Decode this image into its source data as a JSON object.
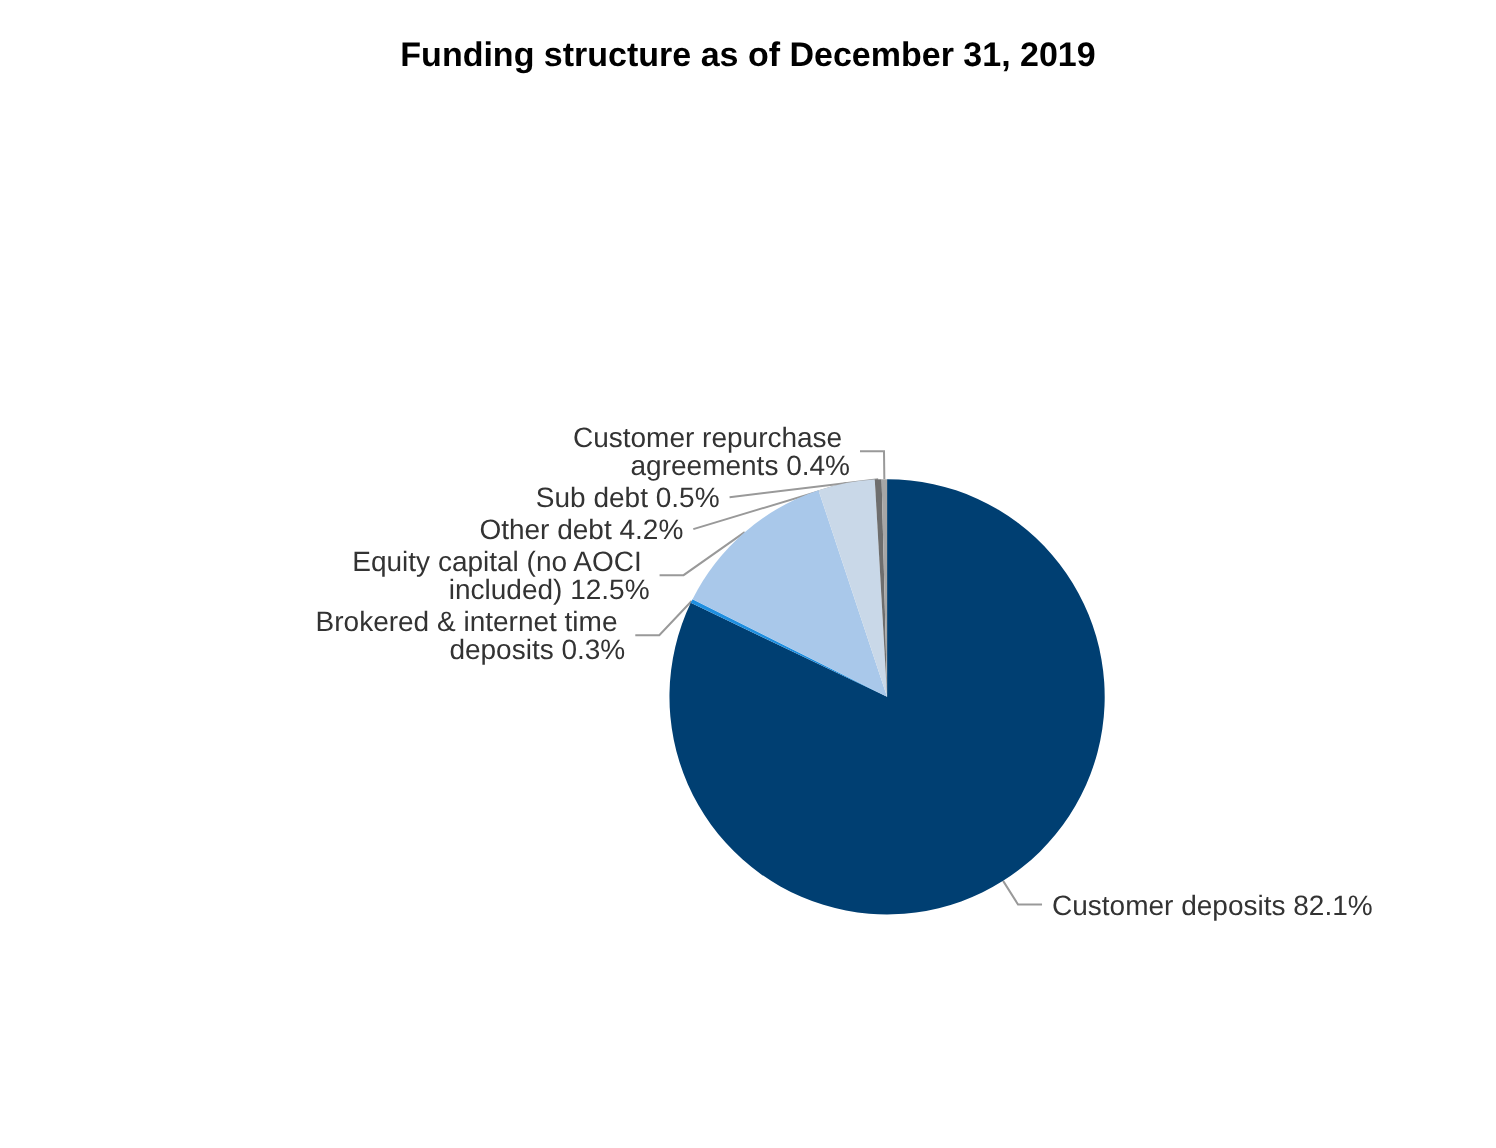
{
  "chart_data": {
    "type": "pie",
    "title": "Funding structure as of December 31, 2019",
    "categories": [
      "Customer deposits",
      "Brokered & internet time deposits",
      "Equity capital (no AOCI included)",
      "Other debt",
      "Sub debt",
      "Customer repurchase agreements"
    ],
    "values": [
      82.1,
      0.3,
      12.5,
      4.2,
      0.5,
      0.4
    ],
    "value_labels": [
      "82.1%",
      "0.3%",
      "12.5%",
      "4.2%",
      "0.5%",
      "0.4%"
    ],
    "colors": [
      "#003f72",
      "#1f8fe0",
      "#a9c8ea",
      "#c9d8e8",
      "#6e6e6e",
      "#a6a6a6"
    ],
    "legend": false
  }
}
